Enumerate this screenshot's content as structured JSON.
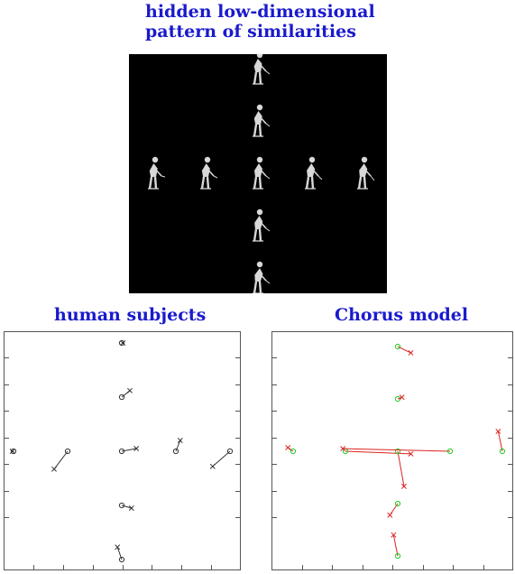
{
  "titles": {
    "top_line1": "hidden low-dimensional",
    "top_line2": "pattern of similarities",
    "left": "human subjects",
    "right": "Chorus model"
  },
  "colors": {
    "title": "#1a1acc",
    "panel": "#000000",
    "figure": "#d8d8d8",
    "human": "#333333",
    "model_true": "#22cc22",
    "model_pred": "#dd2222"
  },
  "icons": {
    "figure": "golfer-figure-icon"
  },
  "grid_points": [
    [
      0,
      2
    ],
    [
      0,
      1
    ],
    [
      -2,
      0
    ],
    [
      -1,
      0
    ],
    [
      0,
      0
    ],
    [
      1,
      0
    ],
    [
      2,
      0
    ],
    [
      0,
      -1
    ],
    [
      0,
      -2
    ]
  ],
  "human_points": {
    "true": [
      [
        0,
        2
      ],
      [
        0,
        1
      ],
      [
        -2,
        0
      ],
      [
        -1,
        0
      ],
      [
        0,
        0
      ],
      [
        1,
        0
      ],
      [
        2,
        0
      ],
      [
        0,
        -1
      ],
      [
        0,
        -2
      ]
    ],
    "estimated": [
      [
        0.02,
        2
      ],
      [
        0.15,
        1.12
      ],
      [
        -2.02,
        0
      ],
      [
        -1.25,
        -0.33
      ],
      [
        0.27,
        0.05
      ],
      [
        1.08,
        0.2
      ],
      [
        1.68,
        -0.28
      ],
      [
        0.18,
        -1.05
      ],
      [
        -0.08,
        -1.77
      ]
    ]
  },
  "model_points": {
    "true": [
      [
        0,
        2
      ],
      [
        0,
        1
      ],
      [
        -2,
        0
      ],
      [
        -1,
        0
      ],
      [
        0,
        0
      ],
      [
        1,
        0
      ],
      [
        2,
        0
      ],
      [
        0,
        -1
      ],
      [
        0,
        -2
      ]
    ],
    "estimated": [
      [
        0.25,
        1.88
      ],
      [
        0.08,
        1.03
      ],
      [
        -2.1,
        0.07
      ],
      [
        0.25,
        -0.05
      ],
      [
        0.12,
        -0.67
      ],
      [
        -1.05,
        0.05
      ],
      [
        1.92,
        0.38
      ],
      [
        -0.15,
        -1.22
      ],
      [
        -0.08,
        -1.6
      ]
    ]
  }
}
